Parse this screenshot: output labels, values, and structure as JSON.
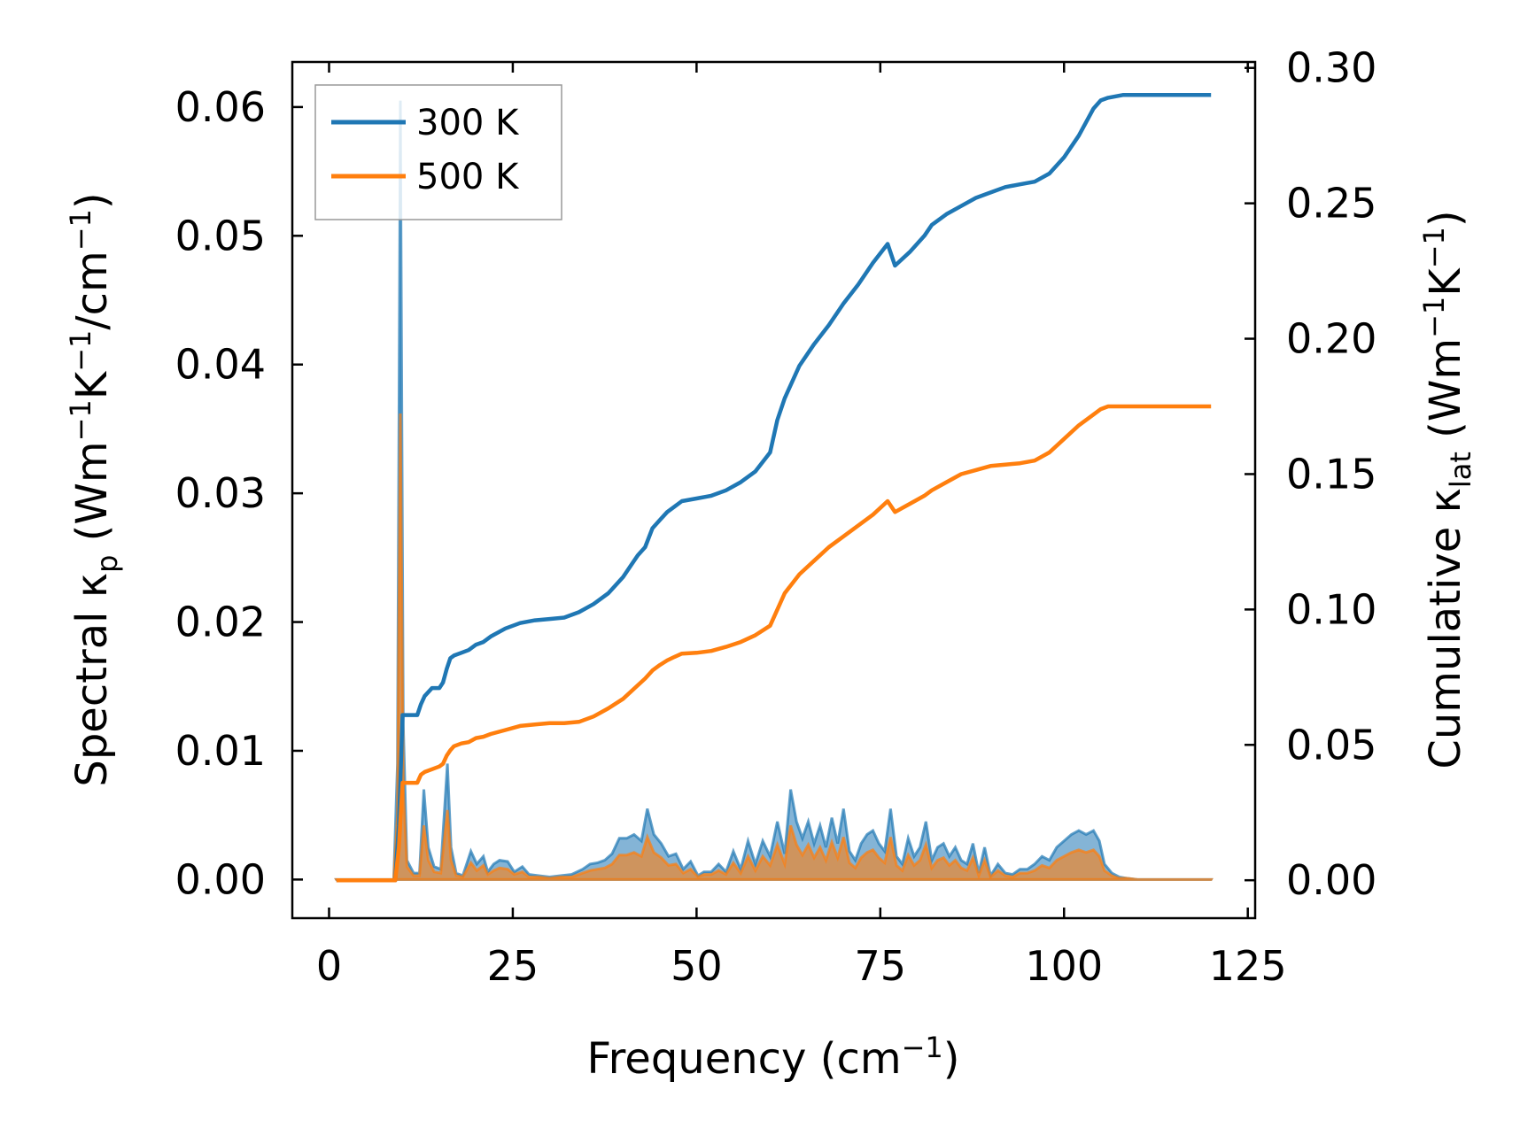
{
  "chart_data": {
    "type": "line",
    "xlabel": {
      "text": "Frequency (cm",
      "sup": "−1",
      "tail": ")"
    },
    "ylabel_left": {
      "text": "Spectral κ",
      "sub": "p",
      "tail1": " (Wm",
      "sup1": "−1",
      "mid": "K",
      "sup2": "−1",
      "tail2": "/cm",
      "sup3": "−1",
      "tail3": ")"
    },
    "ylabel_right": {
      "text": "Cumulative κ",
      "sub": "lat",
      "tail1": " (Wm",
      "sup1": "−1",
      "mid": "K",
      "sup2": "−1",
      "tail2": ")"
    },
    "xlim": [
      -5,
      126
    ],
    "ylim_left": [
      -0.003,
      0.0635
    ],
    "ylim_right": [
      -0.014,
      0.3022
    ],
    "xticks": [
      0,
      25,
      50,
      75,
      100,
      125
    ],
    "xtick_labels": [
      "0",
      "25",
      "50",
      "75",
      "100",
      "125"
    ],
    "yticks_left": [
      0.0,
      0.01,
      0.02,
      0.03,
      0.04,
      0.05,
      0.06
    ],
    "ytick_labels_left": [
      "0.00",
      "0.01",
      "0.02",
      "0.03",
      "0.04",
      "0.05",
      "0.06"
    ],
    "yticks_right": [
      0.0,
      0.05,
      0.1,
      0.15,
      0.2,
      0.25,
      0.3
    ],
    "ytick_labels_right": [
      "0.00",
      "0.05",
      "0.10",
      "0.15",
      "0.20",
      "0.25",
      "0.30"
    ],
    "legend": {
      "position": "upper left"
    },
    "colors": {
      "300K": "#1f77b4",
      "500K": "#ff7f0e"
    },
    "series": [
      {
        "name": "300 K",
        "axis": "right",
        "color": "#1f77b4",
        "x": [
          1,
          8.5,
          9,
          9.5,
          10,
          12,
          12.5,
          13,
          14,
          15,
          15.5,
          16,
          16.5,
          17,
          18,
          19,
          20,
          21,
          22,
          24,
          26,
          28,
          30,
          32,
          34,
          36,
          38,
          40,
          42,
          43,
          44,
          45,
          46,
          47,
          48,
          50,
          52,
          54,
          56,
          58,
          60,
          61,
          62,
          64,
          66,
          68,
          70,
          72,
          74,
          76,
          77,
          79,
          81,
          82,
          84,
          86,
          88,
          90,
          92,
          94,
          96,
          98,
          100,
          102,
          104,
          105,
          106,
          108,
          110,
          120
        ],
        "y": [
          0,
          0,
          0,
          0.02,
          0.061,
          0.061,
          0.065,
          0.068,
          0.071,
          0.071,
          0.073,
          0.078,
          0.082,
          0.083,
          0.084,
          0.085,
          0.087,
          0.088,
          0.09,
          0.093,
          0.095,
          0.096,
          0.0965,
          0.097,
          0.099,
          0.102,
          0.106,
          0.112,
          0.12,
          0.123,
          0.13,
          0.133,
          0.136,
          0.138,
          0.14,
          0.141,
          0.142,
          0.144,
          0.147,
          0.151,
          0.158,
          0.17,
          0.178,
          0.19,
          0.198,
          0.205,
          0.213,
          0.22,
          0.228,
          0.235,
          0.227,
          0.232,
          0.238,
          0.242,
          0.246,
          0.249,
          0.252,
          0.254,
          0.256,
          0.257,
          0.258,
          0.261,
          0.267,
          0.275,
          0.285,
          0.288,
          0.289,
          0.29,
          0.29,
          0.29
        ]
      },
      {
        "name": "500 K",
        "axis": "right",
        "color": "#ff7f0e",
        "x": [
          1,
          8.5,
          9,
          9.5,
          10,
          12,
          12.5,
          13,
          14,
          15,
          15.5,
          16,
          16.5,
          17,
          18,
          19,
          20,
          21,
          22,
          24,
          26,
          28,
          30,
          32,
          34,
          36,
          38,
          40,
          42,
          43,
          44,
          45,
          46,
          47,
          48,
          50,
          52,
          54,
          56,
          58,
          60,
          61,
          62,
          64,
          66,
          68,
          70,
          72,
          74,
          76,
          77,
          79,
          81,
          82,
          84,
          86,
          88,
          90,
          92,
          94,
          96,
          98,
          100,
          102,
          104,
          105,
          106,
          108,
          110,
          120
        ],
        "y": [
          0,
          0,
          0,
          0.012,
          0.036,
          0.036,
          0.039,
          0.04,
          0.041,
          0.042,
          0.043,
          0.046,
          0.048,
          0.0495,
          0.0505,
          0.051,
          0.0525,
          0.053,
          0.054,
          0.0555,
          0.057,
          0.0575,
          0.058,
          0.058,
          0.0585,
          0.0605,
          0.0635,
          0.067,
          0.072,
          0.0745,
          0.0775,
          0.0795,
          0.0812,
          0.0825,
          0.0837,
          0.084,
          0.0847,
          0.0862,
          0.088,
          0.0905,
          0.094,
          0.1,
          0.106,
          0.113,
          0.118,
          0.123,
          0.127,
          0.131,
          0.135,
          0.14,
          0.136,
          0.139,
          0.142,
          0.144,
          0.147,
          0.15,
          0.1515,
          0.153,
          0.1535,
          0.154,
          0.155,
          0.158,
          0.163,
          0.168,
          0.172,
          0.174,
          0.175,
          0.175,
          0.175,
          0.175
        ]
      }
    ],
    "spectral": [
      {
        "name": "300 K",
        "axis": "left",
        "color": "#1f77b4",
        "x": [
          1,
          8,
          8.8,
          9.3,
          9.7,
          10.1,
          10.6,
          11.5,
          12.3,
          12.9,
          13.5,
          14.3,
          15.2,
          16.1,
          16.6,
          17.3,
          18.2,
          19.3,
          20.1,
          21.0,
          21.6,
          22.4,
          23.2,
          24.3,
          25.2,
          26.3,
          27.2,
          28.5,
          30,
          31.5,
          33,
          34.5,
          35.5,
          36.5,
          37.5,
          38.5,
          39.5,
          40.5,
          41.5,
          42.5,
          43.3,
          44.2,
          45.2,
          46.2,
          47.2,
          48.2,
          49.2,
          50.2,
          51.0,
          52.0,
          53.0,
          54.0,
          55.0,
          56.0,
          57.0,
          58.0,
          59.0,
          60.0,
          61.0,
          62.0,
          62.8,
          63.6,
          64.4,
          65.2,
          66.0,
          66.8,
          67.6,
          68.4,
          69.2,
          70.0,
          70.8,
          71.6,
          72.4,
          73.2,
          74.0,
          74.8,
          75.6,
          76.4,
          77.2,
          78.0,
          78.8,
          79.6,
          80.4,
          81.2,
          82.0,
          82.8,
          83.6,
          84.4,
          85.2,
          86.0,
          86.8,
          87.6,
          88.4,
          89.2,
          90.0,
          91.0,
          92.0,
          93.0,
          94.0,
          95.0,
          96.0,
          97.0,
          98.0,
          99.0,
          100.0,
          101.0,
          102.0,
          103.0,
          104.0,
          104.8,
          105.5,
          106.5,
          107.5,
          108.5,
          110,
          120
        ],
        "y": [
          0,
          0,
          0,
          0.009,
          0.0605,
          0.012,
          0.0015,
          0.0005,
          0.0005,
          0.007,
          0.0025,
          0.001,
          0.0008,
          0.009,
          0.0025,
          0.0005,
          0.0003,
          0.0022,
          0.0012,
          0.0018,
          0.0006,
          0.0012,
          0.0015,
          0.0014,
          0.0006,
          0.001,
          0.0004,
          0.0003,
          0.0002,
          0.0003,
          0.0004,
          0.0008,
          0.0012,
          0.0013,
          0.0015,
          0.002,
          0.0032,
          0.0032,
          0.0035,
          0.003,
          0.0055,
          0.0035,
          0.0028,
          0.0018,
          0.002,
          0.0008,
          0.0014,
          0.0003,
          0.0006,
          0.0006,
          0.0012,
          0.0006,
          0.0022,
          0.0008,
          0.003,
          0.0012,
          0.003,
          0.0018,
          0.0045,
          0.002,
          0.007,
          0.0045,
          0.0032,
          0.0045,
          0.0028,
          0.0042,
          0.0025,
          0.0048,
          0.0028,
          0.0055,
          0.0022,
          0.0015,
          0.0028,
          0.0035,
          0.0038,
          0.0028,
          0.0022,
          0.0055,
          0.0018,
          0.0012,
          0.0032,
          0.0018,
          0.0025,
          0.0045,
          0.0015,
          0.0025,
          0.0028,
          0.0018,
          0.0025,
          0.0015,
          0.0012,
          0.0028,
          0.0005,
          0.0025,
          0.0003,
          0.0012,
          0.0005,
          0.0004,
          0.0008,
          0.0008,
          0.0012,
          0.0018,
          0.0015,
          0.0025,
          0.003,
          0.0035,
          0.0038,
          0.0035,
          0.0038,
          0.003,
          0.0012,
          0.0005,
          0.0002,
          0.0001,
          0,
          0
        ]
      },
      {
        "name": "500 K",
        "axis": "left",
        "color": "#ff7f0e",
        "x": [
          1,
          8,
          8.8,
          9.3,
          9.7,
          10.1,
          10.6,
          11.5,
          12.3,
          12.9,
          13.5,
          14.3,
          15.2,
          16.1,
          16.6,
          17.3,
          18.2,
          19.3,
          20.1,
          21.0,
          21.6,
          22.4,
          23.2,
          24.3,
          25.2,
          26.3,
          27.2,
          28.5,
          30,
          31.5,
          33,
          34.5,
          35.5,
          36.5,
          37.5,
          38.5,
          39.5,
          40.5,
          41.5,
          42.5,
          43.3,
          44.2,
          45.2,
          46.2,
          47.2,
          48.2,
          49.2,
          50.2,
          51.0,
          52.0,
          53.0,
          54.0,
          55.0,
          56.0,
          57.0,
          58.0,
          59.0,
          60.0,
          61.0,
          62.0,
          62.8,
          63.6,
          64.4,
          65.2,
          66.0,
          66.8,
          67.6,
          68.4,
          69.2,
          70.0,
          70.8,
          71.6,
          72.4,
          73.2,
          74.0,
          74.8,
          75.6,
          76.4,
          77.2,
          78.0,
          78.8,
          79.6,
          80.4,
          81.2,
          82.0,
          82.8,
          83.6,
          84.4,
          85.2,
          86.0,
          86.8,
          87.6,
          88.4,
          89.2,
          90.0,
          91.0,
          92.0,
          93.0,
          94.0,
          95.0,
          96.0,
          97.0,
          98.0,
          99.0,
          100.0,
          101.0,
          102.0,
          103.0,
          104.0,
          104.8,
          105.5,
          106.5,
          107.5,
          108.5,
          110,
          120
        ],
        "y": [
          0,
          0,
          0,
          0.005,
          0.0362,
          0.007,
          0.001,
          0.0003,
          0.0003,
          0.0042,
          0.0015,
          0.0006,
          0.0005,
          0.0054,
          0.0015,
          0.0003,
          0.0002,
          0.0013,
          0.0007,
          0.0011,
          0.0004,
          0.0007,
          0.0009,
          0.0008,
          0.0004,
          0.0006,
          0.0002,
          0.0002,
          0.0001,
          0.0002,
          0.0002,
          0.0005,
          0.0007,
          0.0008,
          0.0009,
          0.0012,
          0.0019,
          0.0019,
          0.0021,
          0.0018,
          0.0033,
          0.0021,
          0.0017,
          0.0011,
          0.0012,
          0.0005,
          0.0008,
          0.0002,
          0.0004,
          0.0004,
          0.0007,
          0.0004,
          0.0013,
          0.0005,
          0.0018,
          0.0007,
          0.0018,
          0.0011,
          0.0027,
          0.0012,
          0.0042,
          0.0027,
          0.0019,
          0.0027,
          0.0017,
          0.0025,
          0.0015,
          0.0029,
          0.0017,
          0.0033,
          0.0013,
          0.0009,
          0.0017,
          0.0021,
          0.0023,
          0.0017,
          0.0013,
          0.0033,
          0.0011,
          0.0007,
          0.0019,
          0.0011,
          0.0015,
          0.0027,
          0.0009,
          0.0015,
          0.0017,
          0.0011,
          0.0015,
          0.0009,
          0.0007,
          0.0017,
          0.0003,
          0.0015,
          0.0002,
          0.0007,
          0.0003,
          0.0002,
          0.0005,
          0.0005,
          0.0007,
          0.0011,
          0.0009,
          0.0015,
          0.0018,
          0.0021,
          0.0023,
          0.0021,
          0.0023,
          0.0018,
          0.0007,
          0.0003,
          0.0001,
          0.0001,
          0,
          0
        ]
      }
    ]
  }
}
